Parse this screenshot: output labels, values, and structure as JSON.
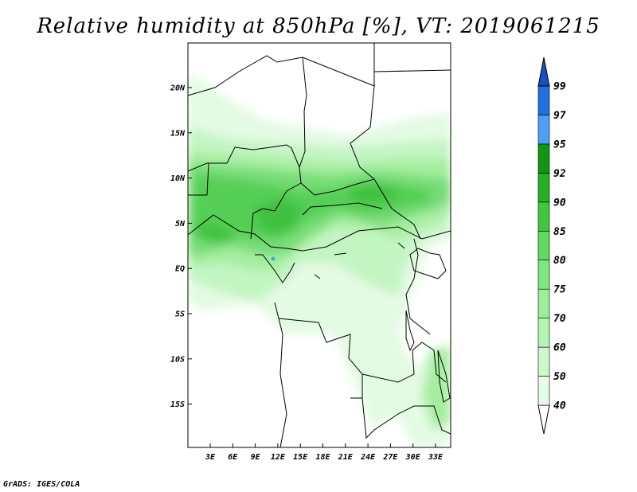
{
  "title": "Relative humidity at 850hPa [%], VT: 2019061215",
  "credit": "GrADS: IGES/COLA",
  "map": {
    "variable": "relative humidity",
    "level": "850hPa",
    "units": "%",
    "lat_ticks": [
      "20N",
      "15N",
      "10N",
      "5N",
      "EQ",
      "5S",
      "10S",
      "15S"
    ],
    "lon_ticks": [
      "3E",
      "6E",
      "9E",
      "12E",
      "15E",
      "18E",
      "21E",
      "24E",
      "27E",
      "30E",
      "33E"
    ]
  },
  "colorbar": {
    "levels": [
      "40",
      "50",
      "60",
      "70",
      "75",
      "80",
      "85",
      "90",
      "92",
      "95",
      "97",
      "99"
    ],
    "colors": [
      "#ffffff",
      "#e6fce6",
      "#cdf8cd",
      "#b3f5b3",
      "#99f099",
      "#7fe57f",
      "#5fd95f",
      "#3fc73f",
      "#25b025",
      "#119611",
      "#4d9ff5",
      "#2070e0",
      "#1850c0"
    ]
  }
}
